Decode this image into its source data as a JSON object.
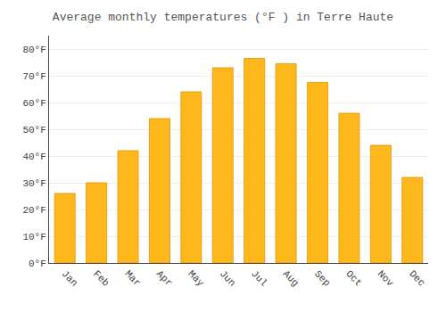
{
  "chart_data": {
    "type": "bar",
    "title": "Average monthly temperatures (°F ) in Terre Haute",
    "categories": [
      "Jan",
      "Feb",
      "Mar",
      "Apr",
      "May",
      "Jun",
      "Jul",
      "Aug",
      "Sep",
      "Oct",
      "Nov",
      "Dec"
    ],
    "values": [
      26,
      30,
      42,
      54,
      64,
      73,
      76.5,
      74.5,
      67.5,
      56,
      44,
      32
    ],
    "color": "#FFB81C",
    "ylim": [
      0,
      85
    ],
    "yticks": [
      {
        "value": 0,
        "label": "0°F"
      },
      {
        "value": 10,
        "label": "10°F"
      },
      {
        "value": 20,
        "label": "20°F"
      },
      {
        "value": 30,
        "label": "30°F"
      },
      {
        "value": 40,
        "label": "40°F"
      },
      {
        "value": 50,
        "label": "50°F"
      },
      {
        "value": 60,
        "label": "60°F"
      },
      {
        "value": 70,
        "label": "70°F"
      },
      {
        "value": 80,
        "label": "80°F"
      }
    ],
    "grid": true
  }
}
